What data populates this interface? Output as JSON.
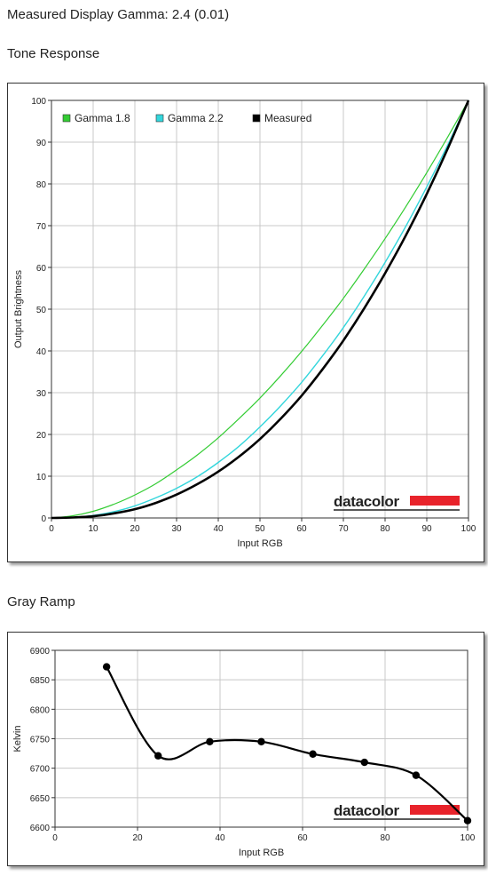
{
  "header": {
    "title": "Measured Display Gamma: 2.4 (0.01)",
    "tone_section": "Tone Response",
    "gray_section": "Gray Ramp"
  },
  "brand": {
    "logo_text": "datacolor",
    "logo_color": "#e8232b"
  },
  "chart_data": [
    {
      "type": "line",
      "title": "",
      "xlabel": "Input RGB",
      "ylabel": "Output Brightness",
      "xlim": [
        0,
        100
      ],
      "ylim": [
        0,
        100
      ],
      "xticks": [
        0,
        10,
        20,
        30,
        40,
        50,
        60,
        70,
        80,
        90,
        100
      ],
      "yticks": [
        0,
        10,
        20,
        30,
        40,
        50,
        60,
        70,
        80,
        90,
        100
      ],
      "grid": true,
      "legend": "top-left",
      "x": [
        0,
        5,
        10,
        15,
        20,
        25,
        30,
        35,
        40,
        45,
        50,
        55,
        60,
        65,
        70,
        75,
        80,
        85,
        90,
        95,
        100
      ],
      "series": [
        {
          "name": "Gamma 1.8",
          "color": "#33cc33",
          "values": [
            0,
            0.5,
            1.6,
            3.3,
            5.5,
            8.2,
            11.5,
            15.1,
            19.2,
            23.8,
            28.7,
            34.1,
            39.9,
            46.1,
            52.6,
            59.6,
            66.9,
            74.6,
            82.7,
            91.2,
            100
          ]
        },
        {
          "name": "Gamma 2.2",
          "color": "#33d6dc",
          "values": [
            0,
            0.1,
            0.6,
            1.5,
            2.9,
            4.8,
            7.1,
            9.9,
            13.3,
            17.2,
            21.8,
            26.9,
            32.5,
            38.8,
            45.6,
            53.1,
            61.2,
            69.9,
            79.3,
            89.3,
            100
          ]
        },
        {
          "name": "Measured",
          "color": "#000000",
          "values": [
            0,
            0.1,
            0.4,
            1.1,
            2.1,
            3.6,
            5.6,
            8.1,
            11.1,
            14.7,
            18.9,
            23.8,
            29.3,
            35.6,
            42.5,
            50.2,
            58.6,
            67.7,
            77.6,
            88.4,
            100
          ]
        }
      ]
    },
    {
      "type": "line",
      "title": "",
      "xlabel": "Input RGB",
      "ylabel": "Kelvin",
      "xlim": [
        0,
        100
      ],
      "ylim": [
        6600,
        6900
      ],
      "xticks": [
        0,
        20,
        40,
        60,
        80,
        100
      ],
      "yticks": [
        6600,
        6650,
        6700,
        6750,
        6800,
        6850,
        6900
      ],
      "grid": true,
      "x": [
        12.5,
        25,
        37.5,
        50,
        62.5,
        75,
        87.5,
        100
      ],
      "series": [
        {
          "color": "#000000",
          "values": [
            6872,
            6721,
            6745,
            6745,
            6724,
            6710,
            6688,
            6611
          ]
        }
      ]
    }
  ]
}
